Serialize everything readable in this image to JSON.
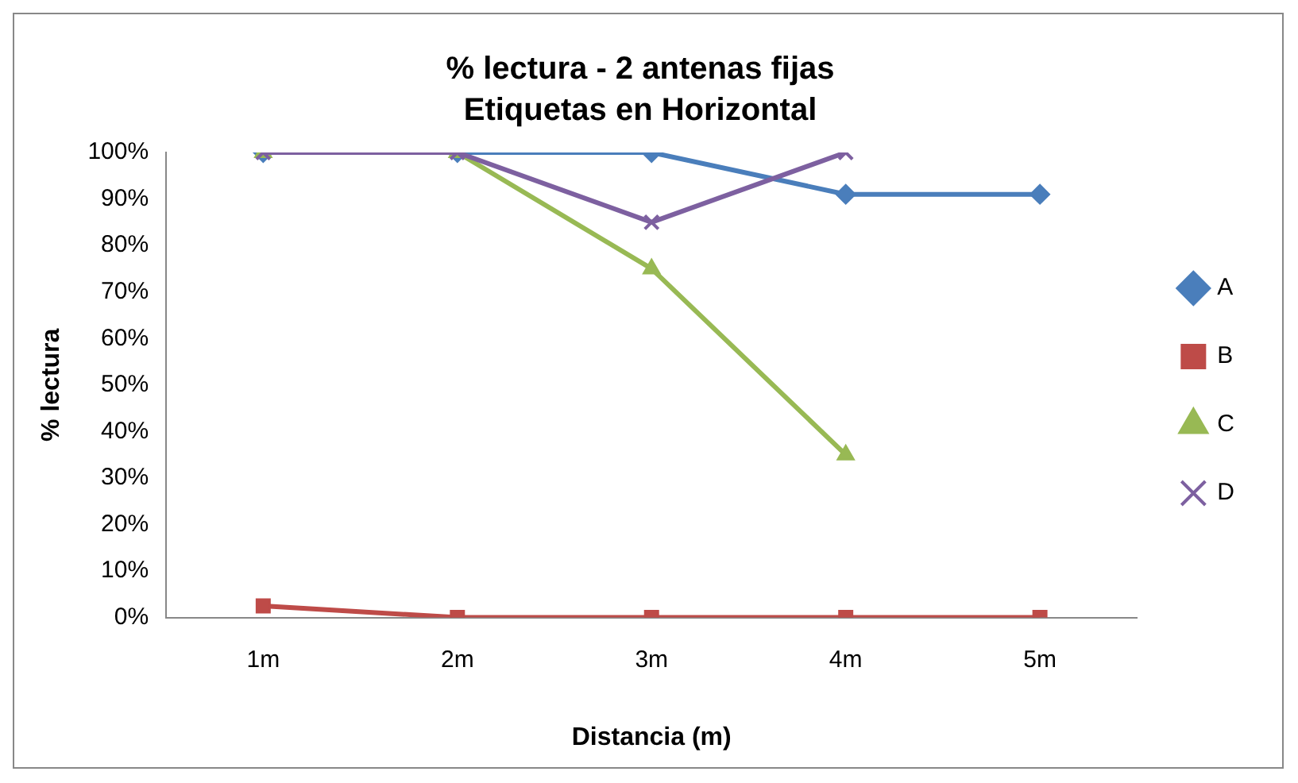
{
  "chart_data": {
    "type": "line",
    "title": "% lectura - 2 antenas fijas",
    "subtitle": "Etiquetas en Horizontal",
    "xlabel": "Distancia (m)",
    "ylabel": "% lectura",
    "categories": [
      "1m",
      "2m",
      "3m",
      "4m",
      "5m"
    ],
    "series": [
      {
        "name": "A",
        "color": "#4a7ebb",
        "marker": "diamond",
        "values": [
          100,
          100,
          100,
          91,
          91
        ]
      },
      {
        "name": "B",
        "color": "#be4b48",
        "marker": "square",
        "values": [
          2.5,
          0,
          0,
          0,
          0
        ]
      },
      {
        "name": "C",
        "color": "#98b954",
        "marker": "triangle",
        "values": [
          100,
          100,
          75,
          35,
          null
        ]
      },
      {
        "name": "D",
        "color": "#7d60a0",
        "marker": "cross",
        "values": [
          100,
          100,
          85,
          100,
          null
        ]
      }
    ],
    "ylim": [
      0,
      100
    ],
    "yticks": [
      {
        "value": 0,
        "label": "0%"
      },
      {
        "value": 10,
        "label": "10%"
      },
      {
        "value": 20,
        "label": "20%"
      },
      {
        "value": 30,
        "label": "30%"
      },
      {
        "value": 40,
        "label": "40%"
      },
      {
        "value": 50,
        "label": "50%"
      },
      {
        "value": 60,
        "label": "60%"
      },
      {
        "value": 70,
        "label": "70%"
      },
      {
        "value": 80,
        "label": "80%"
      },
      {
        "value": 90,
        "label": "90%"
      },
      {
        "value": 100,
        "label": "100%"
      }
    ],
    "grid": false,
    "legend": "right",
    "line_style": "solid"
  }
}
